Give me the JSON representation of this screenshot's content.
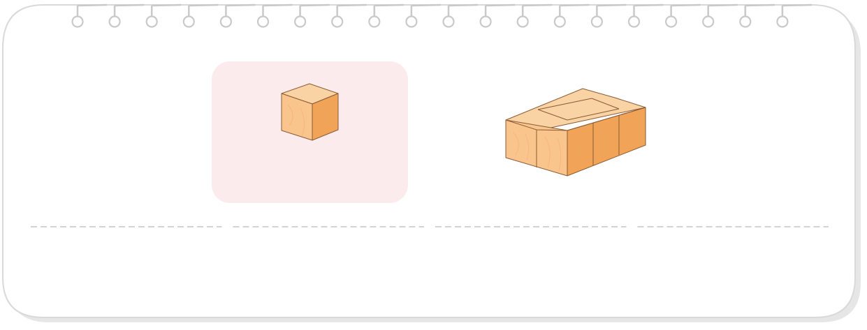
{
  "card": {
    "background": "#ffffff",
    "border_color": "#d9d9d9",
    "shadow_color": "#e6e6e6",
    "ring_count": 20
  },
  "highlight_panel": {
    "fill": "#fcebed"
  },
  "cube": {
    "top_color": "#fad3a4",
    "left_color": "#f9c58d",
    "right_color": "#f1a457",
    "edge_color": "#8a5a35"
  },
  "prism": {
    "rows": 2,
    "columns": 3,
    "layers": 1,
    "unit_cubes": 6
  },
  "divider": {
    "color": "#d3d3d3",
    "segments": 4
  }
}
